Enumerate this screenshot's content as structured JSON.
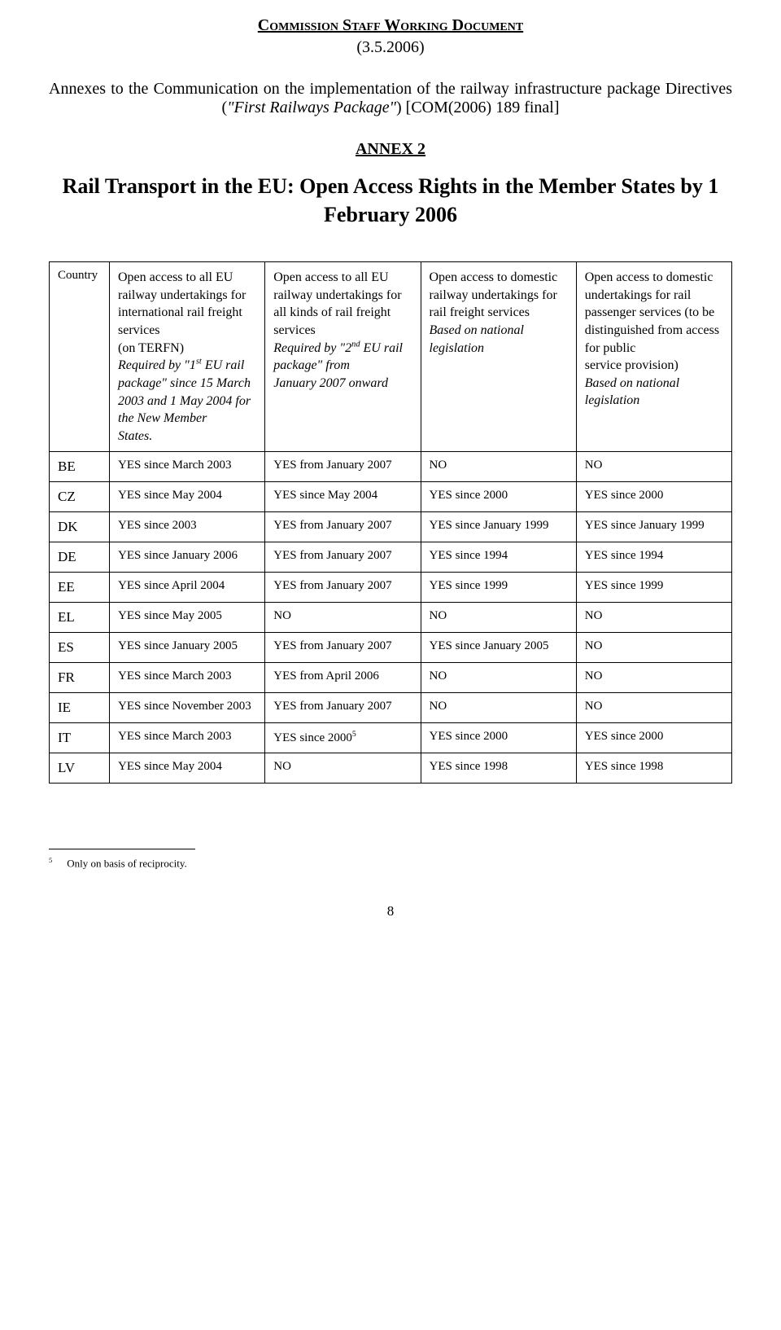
{
  "header": {
    "doc_title": "Commission Staff Working Document",
    "doc_date": "(3.5.2006)",
    "subtitle_pre": "Annexes to the Communication on the implementation of the railway infrastructure package Directives (",
    "subtitle_it": "\"First Railways Package\"",
    "subtitle_post": ") [COM(2006) 189 final]",
    "annex": "ANNEX 2",
    "heading": "Rail Transport in the EU: Open Access Rights in the Member States by 1 February 2006"
  },
  "table": {
    "headers": {
      "c0": "Country",
      "c1_main": "Open access to all EU railway undertakings for international rail freight services",
      "c1_tail": "(on TERFN)",
      "c1_note_a": "Required by \"1",
      "c1_note_sup": "st",
      "c1_note_b": " EU rail package\" since 15 March 2003 and 1 May 2004 for the New Member",
      "c1_note_tail": "States.",
      "c2_main": "Open access to all EU railway undertakings for all kinds of rail freight",
      "c2_tail": "services",
      "c2_note_a": "Required by \"2",
      "c2_note_sup": "nd",
      "c2_note_b": " EU rail package\" from",
      "c2_note_tail": "January 2007 onward",
      "c3_main": "Open access to domestic railway undertakings for",
      "c3_tail": "rail freight services",
      "c3_note": "Based on national",
      "c3_note_tail": "legislation",
      "c4_main": "Open access to domestic undertakings for rail passenger services (to be distinguished from access for public",
      "c4_tail": "service provision)",
      "c4_note": "Based on national",
      "c4_note_tail": "legislation"
    },
    "rows": [
      {
        "c": "BE",
        "v": [
          "YES since March 2003",
          "YES from January 2007",
          "NO",
          "NO"
        ]
      },
      {
        "c": "CZ",
        "v": [
          "YES since May 2004",
          "YES since May 2004",
          "YES since 2000",
          "YES since 2000"
        ]
      },
      {
        "c": "DK",
        "v": [
          "YES since 2003",
          "YES from January 2007",
          "YES since January 1999",
          "YES since January 1999"
        ]
      },
      {
        "c": "DE",
        "v": [
          "YES since January 2006",
          "YES from January 2007",
          "YES since 1994",
          "YES since 1994"
        ]
      },
      {
        "c": "EE",
        "v": [
          "YES since April 2004",
          "YES from January 2007",
          "YES since 1999",
          "YES since 1999"
        ]
      },
      {
        "c": "EL",
        "v": [
          "YES since May 2005",
          "NO",
          "NO",
          "NO"
        ]
      },
      {
        "c": "ES",
        "v": [
          "YES since January 2005",
          "YES from January 2007",
          "YES since January 2005",
          "NO"
        ]
      },
      {
        "c": "FR",
        "v": [
          "YES since March 2003",
          "YES from April 2006",
          "NO",
          "NO"
        ]
      },
      {
        "c": "IE",
        "v": [
          "YES since November 2003",
          "YES from January 2007",
          "NO",
          "NO"
        ]
      },
      {
        "c": "IT",
        "v": [
          "YES since March 2003",
          "YES since 2000",
          "YES since 2000",
          "YES since 2000"
        ],
        "sup": "5"
      },
      {
        "c": "LV",
        "v": [
          "YES since May 2004",
          "NO",
          "YES since 1998",
          "YES since 1998"
        ]
      }
    ]
  },
  "footnote": {
    "num": "5",
    "text": "Only on basis of reciprocity."
  },
  "page_num": "8"
}
